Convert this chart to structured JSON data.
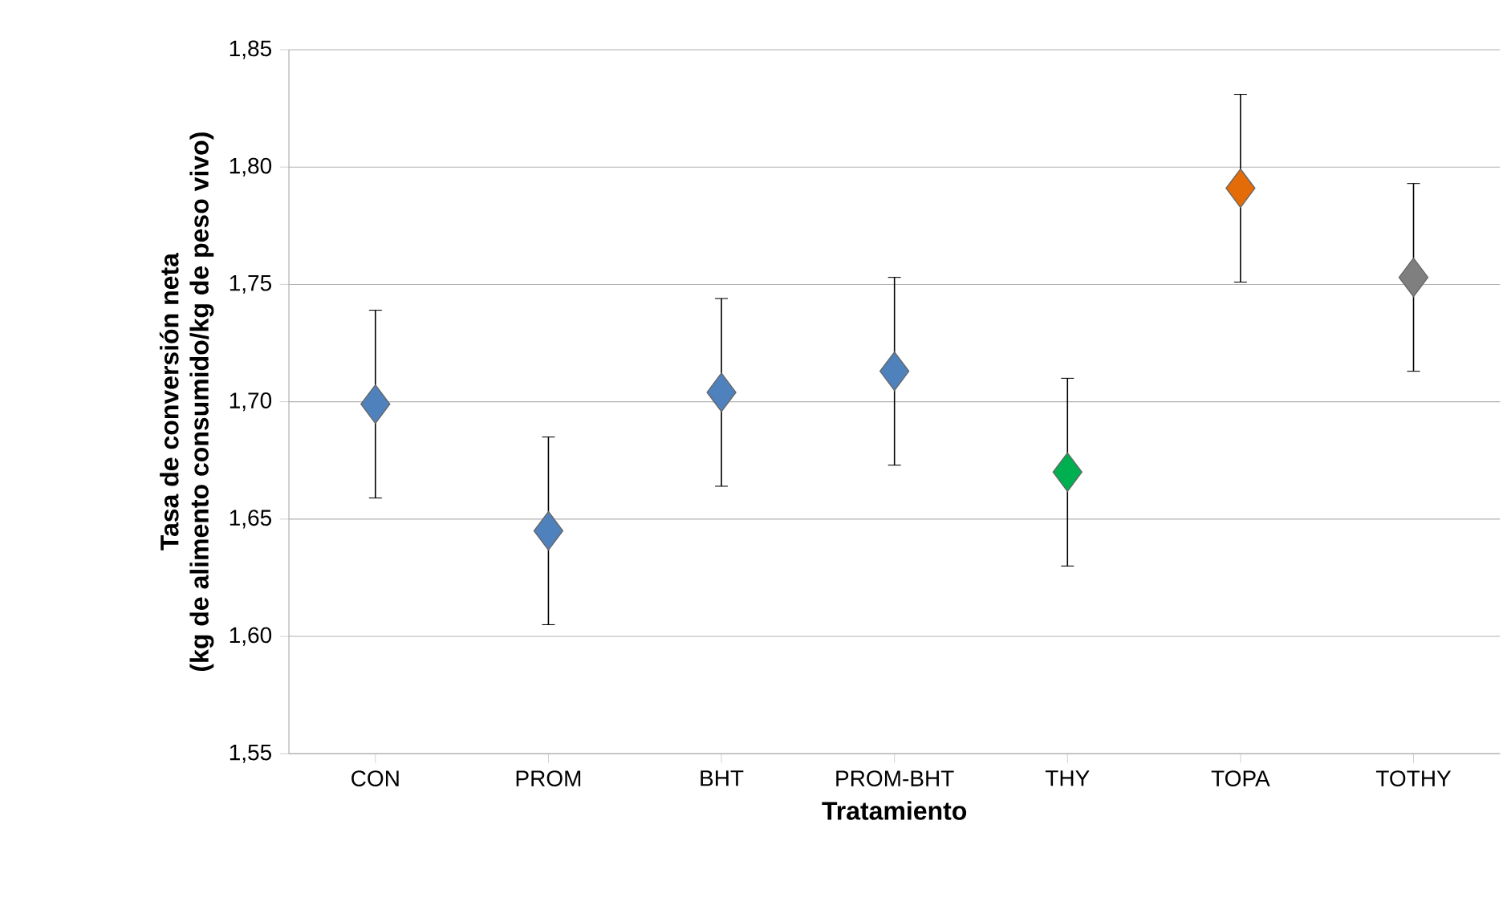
{
  "chart_data": {
    "type": "scatter",
    "xlabel": "Tratamiento",
    "ylabel": "Tasa de conversión neta\n(kg de alimento consumido/kg de peso vivo)",
    "categories": [
      "CON",
      "PROM",
      "BHT",
      "PROM-BHT",
      "THY",
      "TOPA",
      "TOTHY"
    ],
    "series": [
      {
        "values": [
          1.699,
          1.645,
          1.704,
          1.713,
          1.67,
          1.791,
          1.753
        ],
        "colors": [
          "#4f81bd",
          "#4f81bd",
          "#4f81bd",
          "#4f81bd",
          "#00b050",
          "#e36c09",
          "#7f7f7f"
        ],
        "errors": [
          0.04,
          0.04,
          0.04,
          0.04,
          0.04,
          0.04,
          0.04
        ]
      }
    ],
    "ylim": [
      1.55,
      1.85
    ],
    "yticks": [
      {
        "value": 1.55,
        "label": "1,55"
      },
      {
        "value": 1.6,
        "label": "1,60"
      },
      {
        "value": 1.65,
        "label": "1,65"
      },
      {
        "value": 1.7,
        "label": "1,70"
      },
      {
        "value": 1.75,
        "label": "1,75"
      },
      {
        "value": 1.8,
        "label": "1,80"
      },
      {
        "value": 1.85,
        "label": "1,85"
      }
    ],
    "grid": "y",
    "marker": "diamond"
  }
}
